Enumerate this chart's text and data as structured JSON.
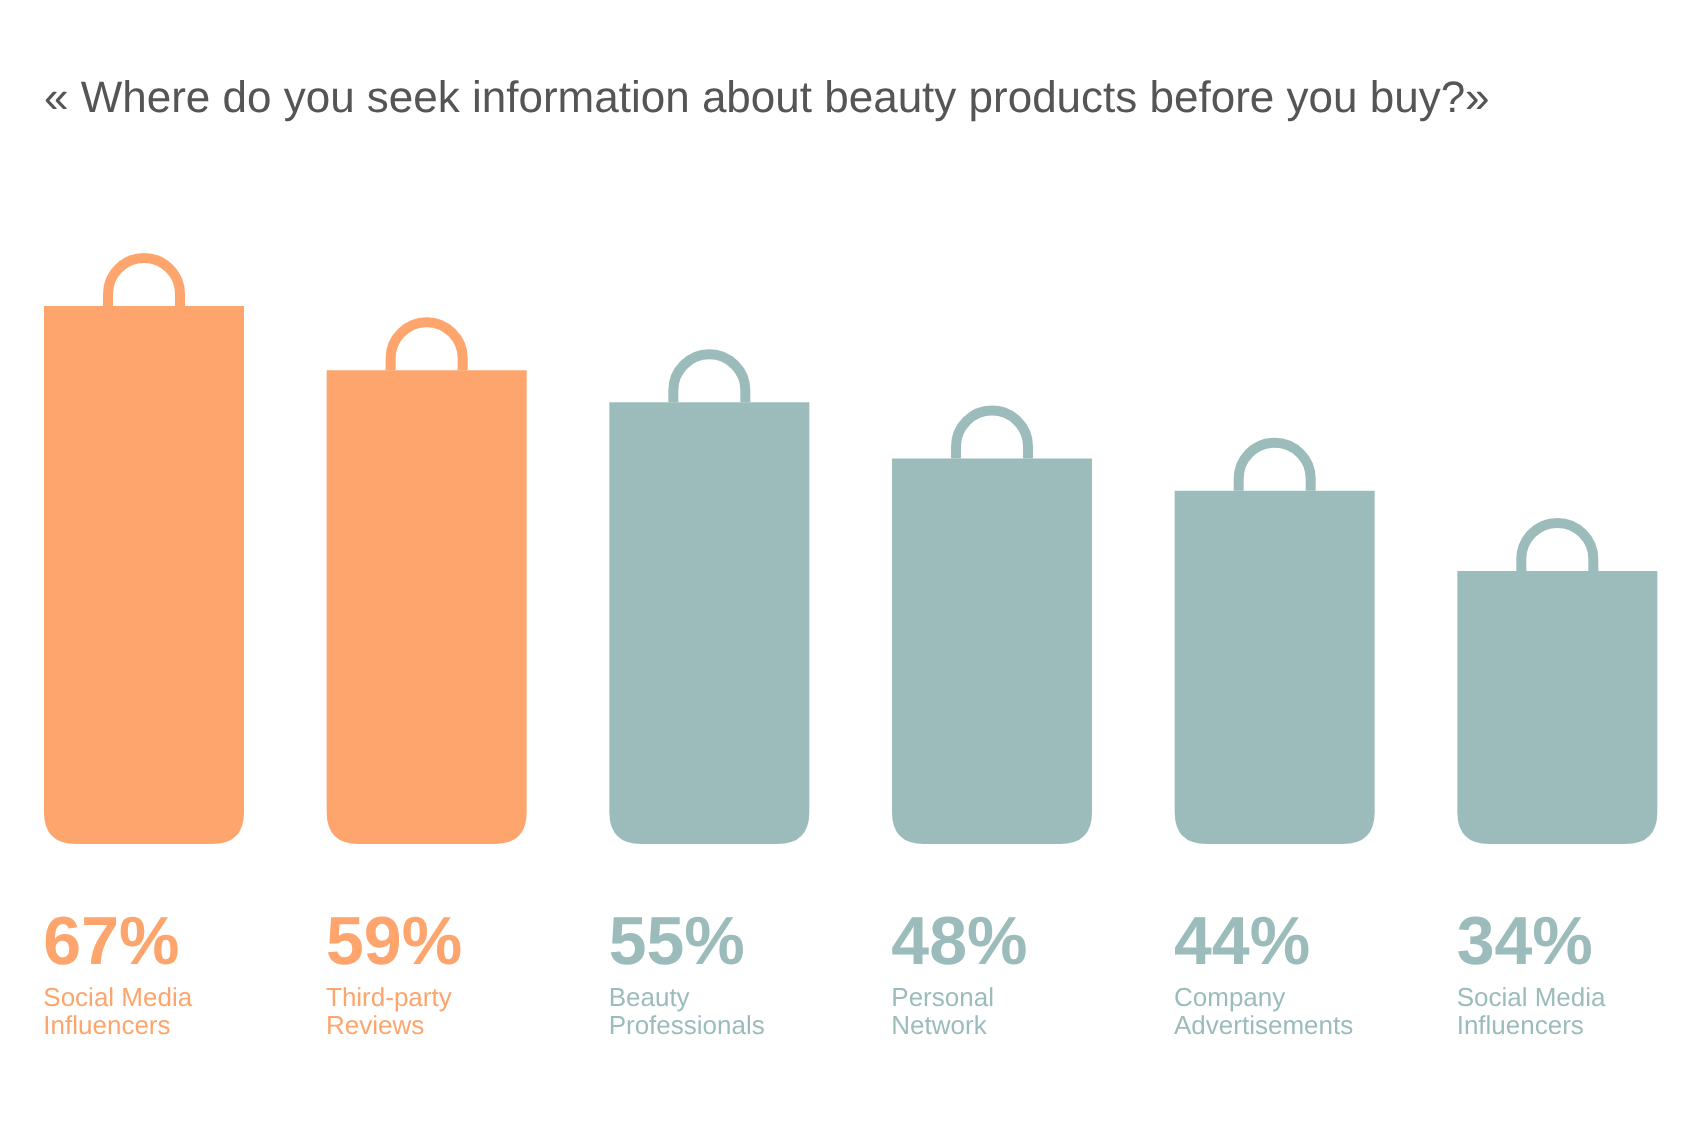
{
  "chart_data": {
    "type": "bar",
    "title": "« Where do you seek information about beauty products before you buy?»",
    "categories": [
      "Social Media Influencers",
      "Third-party Reviews",
      "Beauty Professionals",
      "Personal Network",
      "Company Advertisements",
      "Social Media Influencers"
    ],
    "values": [
      67,
      59,
      55,
      48,
      44,
      34
    ],
    "value_labels": [
      "67%",
      "59%",
      "55%",
      "48%",
      "44%",
      "34%"
    ],
    "colors": [
      "#fda56c",
      "#fda56c",
      "#9bbcbb",
      "#9bbcbb",
      "#9bbcbb",
      "#9bbcbb"
    ]
  }
}
